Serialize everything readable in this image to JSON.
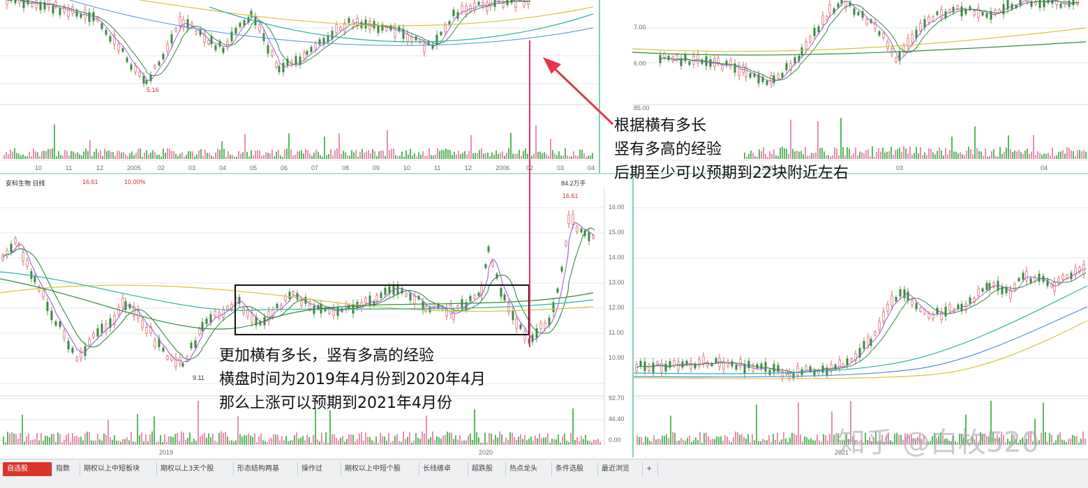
{
  "top_left_chart": {
    "x_ticks": [
      "10",
      "11",
      "12",
      "2005",
      "02",
      "03",
      "04",
      "05",
      "06",
      "07",
      "08",
      "09",
      "10",
      "11",
      "12",
      "2006",
      "02",
      "03",
      "04"
    ],
    "low_label": "5.16"
  },
  "top_right_chart": {
    "price_ticks": [
      "7.00",
      "6.00"
    ],
    "volume_tick": "85.00",
    "x_ticks": [
      "2020",
      "03",
      "04"
    ]
  },
  "bottom_left_chart": {
    "header": {
      "name": "安科生物 日线",
      "price": "16.61",
      "change": "10.00%",
      "volume_unit": "84.2万手"
    },
    "high_label": "16.61",
    "low_label": "9.11",
    "price_ticks": [
      "16.00",
      "15.00",
      "14.00",
      "13.00",
      "12.00",
      "11.00",
      "10.00"
    ],
    "volume_ticks": [
      "92.70",
      "46.40",
      "0.00"
    ],
    "x_ticks": [
      "2019",
      "2020"
    ]
  },
  "bottom_right_chart": {
    "x_ticks": [
      "2021"
    ]
  },
  "annotations": {
    "upper": [
      "根据横有多长",
      "竖有多高的经验",
      "后期至少可以预期到22块附近左右"
    ],
    "lower": [
      "更加横有多长，竖有多高的经验",
      "横盘时间为2019年4月份到2020年4月",
      "那么上涨可以预期到2021年4月份"
    ]
  },
  "watermark": "知乎 @白枚520",
  "tabs": [
    "自选股",
    "指数",
    "期权以上中短板块",
    "期权以上3天个股",
    "形态结构两基",
    "操作过",
    "期权以上中短个股",
    "长线缠卓",
    "超跌股",
    "热点龙头",
    "条件选股",
    "最近浏览",
    "+"
  ],
  "colors": {
    "accent_red": "#d9342b",
    "marker_line": "#e0306a",
    "arrow": "#e8334f",
    "ma_purple": "#a25bd6",
    "ma_green": "#2f8a3e",
    "ma_teal": "#2bb3a3",
    "ma_yellow": "#d9c43a",
    "ma_blue": "#4a8fd8"
  }
}
